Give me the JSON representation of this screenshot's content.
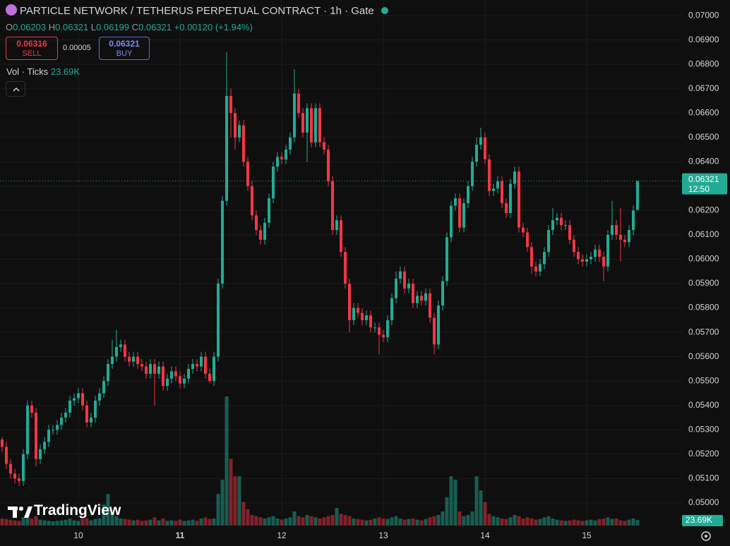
{
  "chart_data": {
    "type": "candlestick",
    "title": "PARTICLE NETWORK / TETHERUS PERPETUAL CONTRACT · 1h · Gate",
    "ohlc_letters": [
      "O",
      "H",
      "L",
      "C"
    ],
    "change": "+0.00120 (+1.94%)",
    "sell": {
      "price": 0.06316,
      "label": "SELL"
    },
    "spread": 5e-05,
    "buy": {
      "price": 0.06321,
      "label": "BUY"
    },
    "volume_title": "Vol · Ticks",
    "volume_label": "23.69K",
    "last_price": 0.06321,
    "countdown": "12:50",
    "watermark": "TradingView",
    "up_color": "#22ab94",
    "down_color": "#f23645",
    "grid": true,
    "ylim": [
      0.04907,
      0.07064
    ],
    "yticks": [
      {
        "value": 0.07,
        "label": "0.07000"
      },
      {
        "value": 0.069,
        "label": "0.06900"
      },
      {
        "value": 0.068,
        "label": "0.06800"
      },
      {
        "value": 0.067,
        "label": "0.06700"
      },
      {
        "value": 0.066,
        "label": "0.06600"
      },
      {
        "value": 0.065,
        "label": "0.06500"
      },
      {
        "value": 0.064,
        "label": "0.06400"
      },
      {
        "value": 0.063,
        "label": "0.06300"
      },
      {
        "value": 0.062,
        "label": "0.06200"
      },
      {
        "value": 0.061,
        "label": "0.06100"
      },
      {
        "value": 0.06,
        "label": "0.06000"
      },
      {
        "value": 0.059,
        "label": "0.05900"
      },
      {
        "value": 0.058,
        "label": "0.05800"
      },
      {
        "value": 0.057,
        "label": "0.05700"
      },
      {
        "value": 0.056,
        "label": "0.05600"
      },
      {
        "value": 0.055,
        "label": "0.05500"
      },
      {
        "value": 0.054,
        "label": "0.05400"
      },
      {
        "value": 0.053,
        "label": "0.05300"
      },
      {
        "value": 0.052,
        "label": "0.05200"
      },
      {
        "value": 0.051,
        "label": "0.05100"
      },
      {
        "value": 0.05,
        "label": "0.05000"
      }
    ],
    "categories": [
      null,
      null,
      null,
      null,
      null,
      null,
      null,
      null,
      null,
      null,
      null,
      null,
      null,
      null,
      null,
      null,
      null,
      null,
      "10",
      null,
      null,
      null,
      null,
      null,
      null,
      null,
      null,
      null,
      null,
      null,
      null,
      null,
      null,
      null,
      null,
      null,
      null,
      null,
      null,
      null,
      null,
      null,
      "11",
      null,
      null,
      null,
      null,
      null,
      null,
      null,
      null,
      null,
      null,
      null,
      null,
      null,
      null,
      null,
      null,
      null,
      null,
      null,
      null,
      null,
      null,
      null,
      "12",
      null,
      null,
      null,
      null,
      null,
      null,
      null,
      null,
      null,
      null,
      null,
      null,
      null,
      null,
      null,
      null,
      null,
      null,
      null,
      null,
      null,
      null,
      null,
      "13",
      null,
      null,
      null,
      null,
      null,
      null,
      null,
      null,
      null,
      null,
      null,
      null,
      null,
      null,
      null,
      null,
      null,
      null,
      null,
      null,
      null,
      null,
      null,
      "14",
      null,
      null,
      null,
      null,
      null,
      null,
      null,
      null,
      null,
      null,
      null,
      null,
      null,
      null,
      null,
      null,
      null,
      null,
      null,
      null,
      null,
      null,
      null,
      "15",
      null,
      null,
      null,
      null,
      null,
      null,
      null,
      null,
      null,
      null,
      null,
      null
    ],
    "ohlc": [
      [
        0.0526,
        0.0527,
        0.0521,
        0.0523
      ],
      [
        0.0523,
        0.0525,
        0.0514,
        0.0516
      ],
      [
        0.0516,
        0.0518,
        0.051,
        0.0512
      ],
      [
        0.0512,
        0.0514,
        0.0508,
        0.051
      ],
      [
        0.051,
        0.0512,
        0.0507,
        0.0509
      ],
      [
        0.0509,
        0.0522,
        0.0507,
        0.052
      ],
      [
        0.052,
        0.0542,
        0.0518,
        0.054
      ],
      [
        0.054,
        0.0542,
        0.0535,
        0.0537
      ],
      [
        0.0537,
        0.0539,
        0.0515,
        0.0518
      ],
      [
        0.0518,
        0.0524,
        0.0516,
        0.0522
      ],
      [
        0.0522,
        0.0527,
        0.052,
        0.0525
      ],
      [
        0.0525,
        0.0532,
        0.0523,
        0.053
      ],
      [
        0.053,
        0.0532,
        0.0528,
        0.053
      ],
      [
        0.053,
        0.0534,
        0.0528,
        0.0532
      ],
      [
        0.0532,
        0.0537,
        0.053,
        0.0535
      ],
      [
        0.0535,
        0.0539,
        0.0533,
        0.0537
      ],
      [
        0.0537,
        0.0544,
        0.0535,
        0.0542
      ],
      [
        0.0542,
        0.0545,
        0.054,
        0.0543
      ],
      [
        0.0543,
        0.0547,
        0.0541,
        0.0545
      ],
      [
        0.0545,
        0.0547,
        0.0538,
        0.054
      ],
      [
        0.054,
        0.0542,
        0.0531,
        0.0533
      ],
      [
        0.0533,
        0.0537,
        0.0531,
        0.0535
      ],
      [
        0.0535,
        0.0544,
        0.0533,
        0.0542
      ],
      [
        0.0542,
        0.0547,
        0.054,
        0.0545
      ],
      [
        0.0545,
        0.0552,
        0.0543,
        0.055
      ],
      [
        0.055,
        0.0559,
        0.0548,
        0.0557
      ],
      [
        0.0557,
        0.0567,
        0.0555,
        0.056
      ],
      [
        0.056,
        0.0571,
        0.0558,
        0.0564
      ],
      [
        0.0564,
        0.0567,
        0.0562,
        0.0565
      ],
      [
        0.0565,
        0.0567,
        0.0558,
        0.056
      ],
      [
        0.056,
        0.0562,
        0.0556,
        0.0558
      ],
      [
        0.0558,
        0.0562,
        0.0556,
        0.056
      ],
      [
        0.056,
        0.0562,
        0.0555,
        0.0557
      ],
      [
        0.0557,
        0.0559,
        0.0554,
        0.0556
      ],
      [
        0.0556,
        0.0558,
        0.0551,
        0.0553
      ],
      [
        0.0553,
        0.0559,
        0.0551,
        0.0557
      ],
      [
        0.0557,
        0.0559,
        0.054,
        0.0553
      ],
      [
        0.0553,
        0.0558,
        0.0551,
        0.0556
      ],
      [
        0.0556,
        0.0558,
        0.0546,
        0.0548
      ],
      [
        0.0548,
        0.0553,
        0.0546,
        0.0551
      ],
      [
        0.0551,
        0.0556,
        0.0549,
        0.0554
      ],
      [
        0.0554,
        0.0556,
        0.055,
        0.0552
      ],
      [
        0.0552,
        0.0554,
        0.0547,
        0.0549
      ],
      [
        0.0549,
        0.0553,
        0.0547,
        0.0551
      ],
      [
        0.0551,
        0.0557,
        0.0549,
        0.0555
      ],
      [
        0.0555,
        0.0559,
        0.0553,
        0.0557
      ],
      [
        0.0557,
        0.0559,
        0.0554,
        0.0556
      ],
      [
        0.0556,
        0.0562,
        0.0554,
        0.056
      ],
      [
        0.056,
        0.0562,
        0.0551,
        0.0553
      ],
      [
        0.0553,
        0.0555,
        0.0549,
        0.055
      ],
      [
        0.055,
        0.0562,
        0.0548,
        0.056
      ],
      [
        0.056,
        0.0592,
        0.0558,
        0.059
      ],
      [
        0.059,
        0.0626,
        0.0588,
        0.0624
      ],
      [
        0.0624,
        0.0685,
        0.0622,
        0.0667
      ],
      [
        0.0667,
        0.067,
        0.065,
        0.066
      ],
      [
        0.066,
        0.0662,
        0.0645,
        0.065
      ],
      [
        0.065,
        0.0657,
        0.0648,
        0.0655
      ],
      [
        0.0655,
        0.0657,
        0.0638,
        0.064
      ],
      [
        0.064,
        0.0642,
        0.0628,
        0.063
      ],
      [
        0.063,
        0.0632,
        0.0616,
        0.0618
      ],
      [
        0.0618,
        0.062,
        0.061,
        0.0612
      ],
      [
        0.0612,
        0.0614,
        0.0606,
        0.0608
      ],
      [
        0.0608,
        0.0617,
        0.0606,
        0.0615
      ],
      [
        0.0615,
        0.0627,
        0.0613,
        0.0625
      ],
      [
        0.0625,
        0.064,
        0.0623,
        0.0638
      ],
      [
        0.0638,
        0.0644,
        0.0636,
        0.0642
      ],
      [
        0.0642,
        0.0644,
        0.0639,
        0.0641
      ],
      [
        0.0641,
        0.0647,
        0.0639,
        0.0645
      ],
      [
        0.0645,
        0.0652,
        0.0643,
        0.065
      ],
      [
        0.065,
        0.0678,
        0.0648,
        0.0668
      ],
      [
        0.0668,
        0.067,
        0.0658,
        0.066
      ],
      [
        0.066,
        0.0662,
        0.065,
        0.0652
      ],
      [
        0.0652,
        0.0664,
        0.064,
        0.0662
      ],
      [
        0.0662,
        0.0664,
        0.0646,
        0.0648
      ],
      [
        0.0648,
        0.0664,
        0.0646,
        0.0662
      ],
      [
        0.0662,
        0.0664,
        0.0646,
        0.0648
      ],
      [
        0.0648,
        0.065,
        0.0643,
        0.0645
      ],
      [
        0.0645,
        0.0647,
        0.063,
        0.0632
      ],
      [
        0.0632,
        0.0634,
        0.061,
        0.0612
      ],
      [
        0.0612,
        0.0618,
        0.061,
        0.0616
      ],
      [
        0.0616,
        0.0618,
        0.0601,
        0.0603
      ],
      [
        0.0603,
        0.0605,
        0.0588,
        0.059
      ],
      [
        0.059,
        0.0592,
        0.057,
        0.0575
      ],
      [
        0.0575,
        0.0582,
        0.0573,
        0.058
      ],
      [
        0.058,
        0.0582,
        0.0576,
        0.0578
      ],
      [
        0.0578,
        0.058,
        0.0573,
        0.0575
      ],
      [
        0.0575,
        0.0579,
        0.0573,
        0.0577
      ],
      [
        0.0577,
        0.0579,
        0.057,
        0.0572
      ],
      [
        0.0572,
        0.0574,
        0.057,
        0.0572
      ],
      [
        0.0572,
        0.0574,
        0.0561,
        0.0569
      ],
      [
        0.0569,
        0.0571,
        0.0566,
        0.0568
      ],
      [
        0.0568,
        0.0577,
        0.0566,
        0.0575
      ],
      [
        0.0575,
        0.0586,
        0.0573,
        0.0584
      ],
      [
        0.0584,
        0.0595,
        0.0582,
        0.0592
      ],
      [
        0.0592,
        0.0597,
        0.059,
        0.0595
      ],
      [
        0.0595,
        0.0597,
        0.0586,
        0.0588
      ],
      [
        0.0588,
        0.0592,
        0.0586,
        0.059
      ],
      [
        0.059,
        0.0592,
        0.058,
        0.0582
      ],
      [
        0.0582,
        0.0587,
        0.058,
        0.0585
      ],
      [
        0.0585,
        0.0587,
        0.0581,
        0.0583
      ],
      [
        0.0583,
        0.0588,
        0.0581,
        0.0586
      ],
      [
        0.0586,
        0.0588,
        0.0574,
        0.0576
      ],
      [
        0.0576,
        0.0578,
        0.0561,
        0.0565
      ],
      [
        0.0565,
        0.0583,
        0.0563,
        0.0581
      ],
      [
        0.0581,
        0.0593,
        0.0579,
        0.0591
      ],
      [
        0.0591,
        0.0611,
        0.0589,
        0.0609
      ],
      [
        0.0609,
        0.0624,
        0.0607,
        0.0622
      ],
      [
        0.0622,
        0.0627,
        0.062,
        0.0625
      ],
      [
        0.0625,
        0.0627,
        0.0611,
        0.0613
      ],
      [
        0.0613,
        0.0625,
        0.0611,
        0.0623
      ],
      [
        0.0623,
        0.0632,
        0.0621,
        0.063
      ],
      [
        0.063,
        0.0642,
        0.0628,
        0.064
      ],
      [
        0.064,
        0.065,
        0.0638,
        0.0647
      ],
      [
        0.0647,
        0.0654,
        0.0645,
        0.065
      ],
      [
        0.065,
        0.0652,
        0.0639,
        0.0641
      ],
      [
        0.0641,
        0.0643,
        0.0626,
        0.0628
      ],
      [
        0.0628,
        0.0631,
        0.0626,
        0.0629
      ],
      [
        0.0629,
        0.0634,
        0.0627,
        0.0632
      ],
      [
        0.0632,
        0.0634,
        0.0621,
        0.0623
      ],
      [
        0.0623,
        0.0625,
        0.0617,
        0.0619
      ],
      [
        0.0619,
        0.0633,
        0.0617,
        0.0631
      ],
      [
        0.0631,
        0.0638,
        0.0629,
        0.0636
      ],
      [
        0.0636,
        0.0638,
        0.0611,
        0.0613
      ],
      [
        0.0613,
        0.0615,
        0.0609,
        0.0611
      ],
      [
        0.0611,
        0.0613,
        0.0603,
        0.0605
      ],
      [
        0.0605,
        0.0607,
        0.0594,
        0.0597
      ],
      [
        0.0597,
        0.0599,
        0.0593,
        0.0595
      ],
      [
        0.0595,
        0.06,
        0.0593,
        0.0598
      ],
      [
        0.0598,
        0.0605,
        0.0596,
        0.0603
      ],
      [
        0.0603,
        0.0614,
        0.0601,
        0.0612
      ],
      [
        0.0612,
        0.0621,
        0.061,
        0.0616
      ],
      [
        0.0616,
        0.0619,
        0.0614,
        0.0617
      ],
      [
        0.0617,
        0.0619,
        0.0612,
        0.0614
      ],
      [
        0.0614,
        0.0616,
        0.0612,
        0.0614
      ],
      [
        0.0614,
        0.0616,
        0.0606,
        0.0608
      ],
      [
        0.0608,
        0.061,
        0.0601,
        0.0603
      ],
      [
        0.0603,
        0.0605,
        0.0598,
        0.06
      ],
      [
        0.06,
        0.0602,
        0.0597,
        0.0599
      ],
      [
        0.0599,
        0.0602,
        0.0597,
        0.06
      ],
      [
        0.06,
        0.0603,
        0.0598,
        0.0601
      ],
      [
        0.0601,
        0.0606,
        0.0599,
        0.0604
      ],
      [
        0.0604,
        0.0606,
        0.0599,
        0.0601
      ],
      [
        0.0601,
        0.0603,
        0.0591,
        0.0597
      ],
      [
        0.0597,
        0.0612,
        0.0595,
        0.061
      ],
      [
        0.061,
        0.0624,
        0.0608,
        0.0614
      ],
      [
        0.0614,
        0.0616,
        0.0608,
        0.061
      ],
      [
        0.061,
        0.0621,
        0.0599,
        0.0608
      ],
      [
        0.0608,
        0.061,
        0.0605,
        0.0607
      ],
      [
        0.0607,
        0.0614,
        0.0605,
        0.0612
      ],
      [
        0.0612,
        0.0622,
        0.061,
        0.062
      ],
      [
        0.06203,
        0.06321,
        0.06199,
        0.06321
      ]
    ],
    "volume": [
      30000,
      28000,
      25000,
      22000,
      20000,
      35000,
      45000,
      30000,
      40000,
      25000,
      22000,
      20000,
      18000,
      20000,
      22000,
      25000,
      30000,
      22000,
      20000,
      28000,
      30000,
      22000,
      28000,
      30000,
      90000,
      135000,
      60000,
      40000,
      30000,
      28000,
      25000,
      22000,
      25000,
      20000,
      22000,
      25000,
      35000,
      22000,
      30000,
      20000,
      22000,
      20000,
      25000,
      20000,
      22000,
      25000,
      20000,
      30000,
      35000,
      28000,
      30000,
      135000,
      195000,
      550000,
      285000,
      210000,
      210000,
      100000,
      70000,
      45000,
      40000,
      35000,
      30000,
      35000,
      40000,
      30000,
      25000,
      30000,
      35000,
      60000,
      40000,
      35000,
      45000,
      40000,
      35000,
      30000,
      35000,
      40000,
      45000,
      75000,
      50000,
      45000,
      40000,
      30000,
      28000,
      25000,
      22000,
      25000,
      30000,
      35000,
      30000,
      28000,
      35000,
      40000,
      30000,
      25000,
      28000,
      30000,
      25000,
      22000,
      28000,
      35000,
      40000,
      45000,
      60000,
      120000,
      210000,
      195000,
      60000,
      40000,
      45000,
      60000,
      210000,
      150000,
      100000,
      50000,
      40000,
      35000,
      30000,
      28000,
      35000,
      45000,
      40000,
      30000,
      35000,
      30000,
      25000,
      28000,
      35000,
      40000,
      30000,
      25000,
      22000,
      20000,
      22000,
      25000,
      22000,
      20000,
      22000,
      25000,
      22000,
      28000,
      30000,
      35000,
      28000,
      30000,
      22000,
      20000,
      25000,
      30000,
      23690
    ]
  }
}
